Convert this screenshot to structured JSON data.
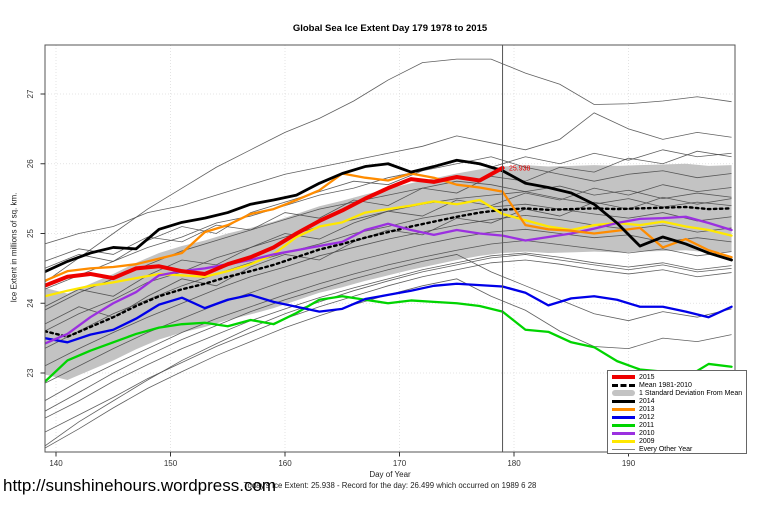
{
  "footer_url": {
    "text": "http://sunshinehours.wordpress.com"
  },
  "chart_data": {
    "type": "line",
    "title": "Global Sea Ice Extent Day 179 1978 to 2015",
    "xlabel": "Day of Year",
    "ylabel": "Ice Extent in millions of sq. km.",
    "caption": "Today's Ice Extent: 25.938  - Record for the day: 26.499 which occurred on 1989 6 28",
    "x_ticks": [
      140,
      150,
      160,
      170,
      180,
      190
    ],
    "y_ticks": [
      23,
      24,
      25,
      26,
      27
    ],
    "xlim": [
      139,
      199.3
    ],
    "ylim": [
      21.85,
      27.7
    ],
    "grid": true,
    "vline_x": 179,
    "annotation": {
      "text": "25.938",
      "x": 179.3,
      "y": 25.938,
      "color": "#ee0000"
    },
    "days": [
      139,
      141,
      143,
      145,
      147,
      149,
      151,
      153,
      155,
      157,
      159,
      161,
      163,
      165,
      167,
      169,
      171,
      173,
      175,
      177,
      179,
      181,
      183,
      185,
      187,
      189,
      191,
      193,
      195,
      197,
      199
    ],
    "std_band": {
      "halfwidth": 0.62,
      "color": "#c3c3c3",
      "label": "1 Standard Deviation From Mean"
    },
    "series": [
      {
        "id": "mean",
        "name": "Mean 1981-2010",
        "color": "#000000",
        "width": 2.4,
        "dash": "2.5,3.5",
        "values": [
          23.6,
          23.52,
          23.66,
          23.8,
          23.96,
          24.1,
          24.2,
          24.28,
          24.38,
          24.46,
          24.55,
          24.66,
          24.77,
          24.85,
          24.94,
          25.02,
          25.1,
          25.17,
          25.24,
          25.3,
          25.34,
          25.36,
          25.34,
          25.35,
          25.36,
          25.35,
          25.36,
          25.37,
          25.38,
          25.35,
          25.36
        ]
      },
      {
        "id": "2009",
        "name": "2009",
        "color": "#ffe800",
        "width": 2.3,
        "values": [
          24.1,
          24.18,
          24.25,
          24.3,
          24.36,
          24.42,
          24.4,
          24.38,
          24.46,
          24.56,
          24.7,
          24.95,
          25.1,
          25.16,
          25.3,
          25.35,
          25.4,
          25.46,
          25.42,
          25.48,
          25.28,
          25.19,
          25.1,
          25.05,
          25.12,
          25.15,
          25.12,
          25.17,
          25.1,
          25.05,
          24.97
        ]
      },
      {
        "id": "2011",
        "name": "2011",
        "color": "#00d400",
        "width": 2.3,
        "values": [
          22.87,
          23.18,
          23.32,
          23.44,
          23.56,
          23.65,
          23.7,
          23.72,
          23.67,
          23.76,
          23.7,
          23.86,
          24.05,
          24.1,
          24.05,
          24.0,
          24.04,
          24.02,
          24.0,
          23.96,
          23.88,
          23.62,
          23.59,
          23.44,
          23.37,
          23.17,
          23.05,
          23.02,
          22.93,
          23.13,
          23.09
        ]
      },
      {
        "id": "2012",
        "name": "2012",
        "color": "#0000e8",
        "width": 2.3,
        "values": [
          23.5,
          23.44,
          23.55,
          23.62,
          23.78,
          23.98,
          24.08,
          23.93,
          24.05,
          24.12,
          24.02,
          23.95,
          23.88,
          23.92,
          24.06,
          24.12,
          24.18,
          24.25,
          24.28,
          24.26,
          24.24,
          24.15,
          23.97,
          24.07,
          24.1,
          24.05,
          23.95,
          23.95,
          23.88,
          23.8,
          23.95
        ]
      },
      {
        "id": "2010",
        "name": "2010",
        "color": "#9b30e0",
        "width": 2.3,
        "values": [
          23.42,
          23.56,
          23.8,
          24.0,
          24.16,
          24.4,
          24.46,
          24.5,
          24.56,
          24.62,
          24.7,
          24.76,
          24.82,
          24.88,
          25.05,
          25.14,
          25.05,
          24.98,
          25.05,
          25.0,
          24.97,
          24.9,
          24.95,
          25.0,
          25.07,
          25.15,
          25.21,
          25.22,
          25.24,
          25.15,
          25.05
        ]
      },
      {
        "id": "2013",
        "name": "2013",
        "color": "#ff8c00",
        "width": 2.3,
        "values": [
          24.32,
          24.46,
          24.5,
          24.52,
          24.56,
          24.64,
          24.72,
          25.02,
          25.12,
          25.28,
          25.35,
          25.48,
          25.62,
          25.86,
          25.8,
          25.76,
          25.86,
          25.8,
          25.7,
          25.66,
          25.6,
          25.12,
          25.06,
          25.04,
          25.0,
          25.04,
          25.08,
          24.8,
          24.92,
          24.76,
          24.66
        ]
      },
      {
        "id": "2014",
        "name": "2014",
        "color": "#000000",
        "width": 2.8,
        "values": [
          24.45,
          24.6,
          24.72,
          24.8,
          24.78,
          25.06,
          25.16,
          25.22,
          25.3,
          25.42,
          25.48,
          25.55,
          25.72,
          25.86,
          25.96,
          26.0,
          25.88,
          25.96,
          26.05,
          26.0,
          25.9,
          25.72,
          25.66,
          25.58,
          25.42,
          25.15,
          24.82,
          24.95,
          24.85,
          24.72,
          24.62
        ]
      },
      {
        "id": "2015",
        "name": "2015",
        "color": "#ee0000",
        "width": 4,
        "values": [
          24.25,
          24.38,
          24.42,
          24.36,
          24.5,
          24.53,
          24.46,
          24.42,
          24.56,
          24.66,
          24.8,
          25.0,
          25.18,
          25.33,
          25.5,
          25.65,
          25.78,
          25.74,
          25.81,
          25.76,
          25.94,
          null,
          null,
          null,
          null,
          null,
          null,
          null,
          null,
          null,
          null
        ]
      }
    ],
    "other_years": {
      "label": "Every Other Year",
      "color": "#444444",
      "width": 0.8,
      "x_start": 139,
      "x_step": 3,
      "lines": [
        [
          24.3,
          24.65,
          25.0,
          25.35,
          25.65,
          25.95,
          26.2,
          26.45,
          26.65,
          26.9,
          27.2,
          27.45,
          27.5,
          27.5,
          27.3,
          27.14,
          26.85,
          26.86,
          26.9,
          26.96,
          26.89
        ],
        [
          24.85,
          25.0,
          25.1,
          25.3,
          25.4,
          25.55,
          25.7,
          25.85,
          25.95,
          26.05,
          26.15,
          26.25,
          26.4,
          26.3,
          26.2,
          26.35,
          26.73,
          26.5,
          26.35,
          26.45,
          26.38
        ],
        [
          24.5,
          24.7,
          24.6,
          24.9,
          25.1,
          25.0,
          25.3,
          25.45,
          25.6,
          25.75,
          25.7,
          25.9,
          26.05,
          25.95,
          26.1,
          26.0,
          26.15,
          26.05,
          26.2,
          26.1,
          26.15
        ],
        [
          24.2,
          24.4,
          24.6,
          24.8,
          24.95,
          25.15,
          25.25,
          25.4,
          25.55,
          25.65,
          25.8,
          25.9,
          26.0,
          26.1,
          25.95,
          25.85,
          25.75,
          25.85,
          25.9,
          25.8,
          25.86
        ],
        [
          23.9,
          24.15,
          24.35,
          24.55,
          24.75,
          24.9,
          25.05,
          25.2,
          25.35,
          25.45,
          25.55,
          25.65,
          25.75,
          25.7,
          25.6,
          25.68,
          25.55,
          25.62,
          25.5,
          25.58,
          25.52
        ],
        [
          23.6,
          23.85,
          24.05,
          24.3,
          24.45,
          24.65,
          24.8,
          24.95,
          25.1,
          25.2,
          25.32,
          25.42,
          25.5,
          25.55,
          25.6,
          25.5,
          25.42,
          25.5,
          25.38,
          25.45,
          25.4
        ],
        [
          23.35,
          23.6,
          23.85,
          24.05,
          24.25,
          24.42,
          24.58,
          24.72,
          24.85,
          25.0,
          25.1,
          25.22,
          25.3,
          25.38,
          25.42,
          25.35,
          25.28,
          25.22,
          25.3,
          25.18,
          25.24
        ],
        [
          23.1,
          23.35,
          23.58,
          23.8,
          24.0,
          24.2,
          24.38,
          24.52,
          24.68,
          24.8,
          24.92,
          25.02,
          25.12,
          25.2,
          25.26,
          25.2,
          25.12,
          25.06,
          25.12,
          25.02,
          25.08
        ],
        [
          22.85,
          23.1,
          23.35,
          23.58,
          23.78,
          23.98,
          24.15,
          24.32,
          24.46,
          24.6,
          24.72,
          24.84,
          24.94,
          25.02,
          25.06,
          25.0,
          24.94,
          24.98,
          24.88,
          24.94,
          24.88
        ],
        [
          22.6,
          22.88,
          23.12,
          23.35,
          23.58,
          23.78,
          23.95,
          24.12,
          24.28,
          24.42,
          24.55,
          24.66,
          24.76,
          24.85,
          24.9,
          24.84,
          24.78,
          24.72,
          24.78,
          24.68,
          24.74
        ],
        [
          22.35,
          22.6,
          22.88,
          23.12,
          23.35,
          23.55,
          23.75,
          23.92,
          24.08,
          24.22,
          24.35,
          24.48,
          24.58,
          24.68,
          24.72,
          24.66,
          24.58,
          24.52,
          24.58,
          24.48,
          24.54
        ],
        [
          21.92,
          22.2,
          22.5,
          22.78,
          23.02,
          23.25,
          23.45,
          23.65,
          23.82,
          23.98,
          24.12,
          24.25,
          24.35,
          24.1,
          23.9,
          23.6,
          23.38,
          23.35,
          23.5,
          23.45,
          23.55
        ],
        [
          23.7,
          23.95,
          23.8,
          24.1,
          24.35,
          24.25,
          24.52,
          24.7,
          24.62,
          24.88,
          25.05,
          24.98,
          25.22,
          25.15,
          25.35,
          25.25,
          25.45,
          25.35,
          25.52,
          25.42,
          25.5
        ],
        [
          24.6,
          24.78,
          24.7,
          24.95,
          24.88,
          25.12,
          25.05,
          25.3,
          25.22,
          25.48,
          25.4,
          25.65,
          25.58,
          25.82,
          25.75,
          25.95,
          25.88,
          26.08,
          26.0,
          26.18,
          26.1
        ],
        [
          22.15,
          22.4,
          22.65,
          22.92,
          23.15,
          23.38,
          23.58,
          23.78,
          23.95,
          24.1,
          24.25,
          24.38,
          24.48,
          24.58,
          24.62,
          24.56,
          24.48,
          24.42,
          24.48,
          24.38,
          24.44
        ],
        [
          23.95,
          24.2,
          24.1,
          24.4,
          24.62,
          24.55,
          24.8,
          25.0,
          24.92,
          25.15,
          25.32,
          25.25,
          25.48,
          25.4,
          25.58,
          25.48,
          25.65,
          25.55,
          25.7,
          25.6,
          25.66
        ],
        [
          22.45,
          22.72,
          23.0,
          23.25,
          23.48,
          23.68,
          23.88,
          24.05,
          24.2,
          24.35,
          24.48,
          24.6,
          24.7,
          24.45,
          24.25,
          24.05,
          23.85,
          23.75,
          23.88,
          23.8,
          23.92
        ],
        [
          21.95,
          22.3,
          22.6,
          22.9,
          23.18,
          23.42,
          23.65,
          23.85,
          24.02,
          24.18,
          24.32,
          24.45,
          24.55,
          24.65,
          24.7,
          24.62,
          24.55,
          24.48,
          24.55,
          24.45,
          24.5
        ]
      ]
    },
    "legend": {
      "entries": [
        {
          "id": "2015",
          "label": "2015",
          "swatch": "line",
          "color": "#ee0000",
          "thickness": 4
        },
        {
          "id": "mean",
          "label": "Mean 1981-2010",
          "swatch": "dashed",
          "color": "#000000",
          "thickness": 3
        },
        {
          "id": "std",
          "label": "1 Standard Deviation From Mean",
          "swatch": "band",
          "color": "#c3c3c3",
          "thickness": 6
        },
        {
          "id": "2014",
          "label": "2014",
          "swatch": "line",
          "color": "#000000",
          "thickness": 3
        },
        {
          "id": "2013",
          "label": "2013",
          "swatch": "line",
          "color": "#ff8c00",
          "thickness": 3
        },
        {
          "id": "2012",
          "label": "2012",
          "swatch": "line",
          "color": "#0000e8",
          "thickness": 3
        },
        {
          "id": "2011",
          "label": "2011",
          "swatch": "line",
          "color": "#00d400",
          "thickness": 3
        },
        {
          "id": "2010",
          "label": "2010",
          "swatch": "line",
          "color": "#9b30e0",
          "thickness": 3
        },
        {
          "id": "2009",
          "label": "2009",
          "swatch": "line",
          "color": "#ffe800",
          "thickness": 3
        },
        {
          "id": "other",
          "label": "Every Other Year",
          "swatch": "line",
          "color": "#888888",
          "thickness": 1
        }
      ]
    }
  }
}
